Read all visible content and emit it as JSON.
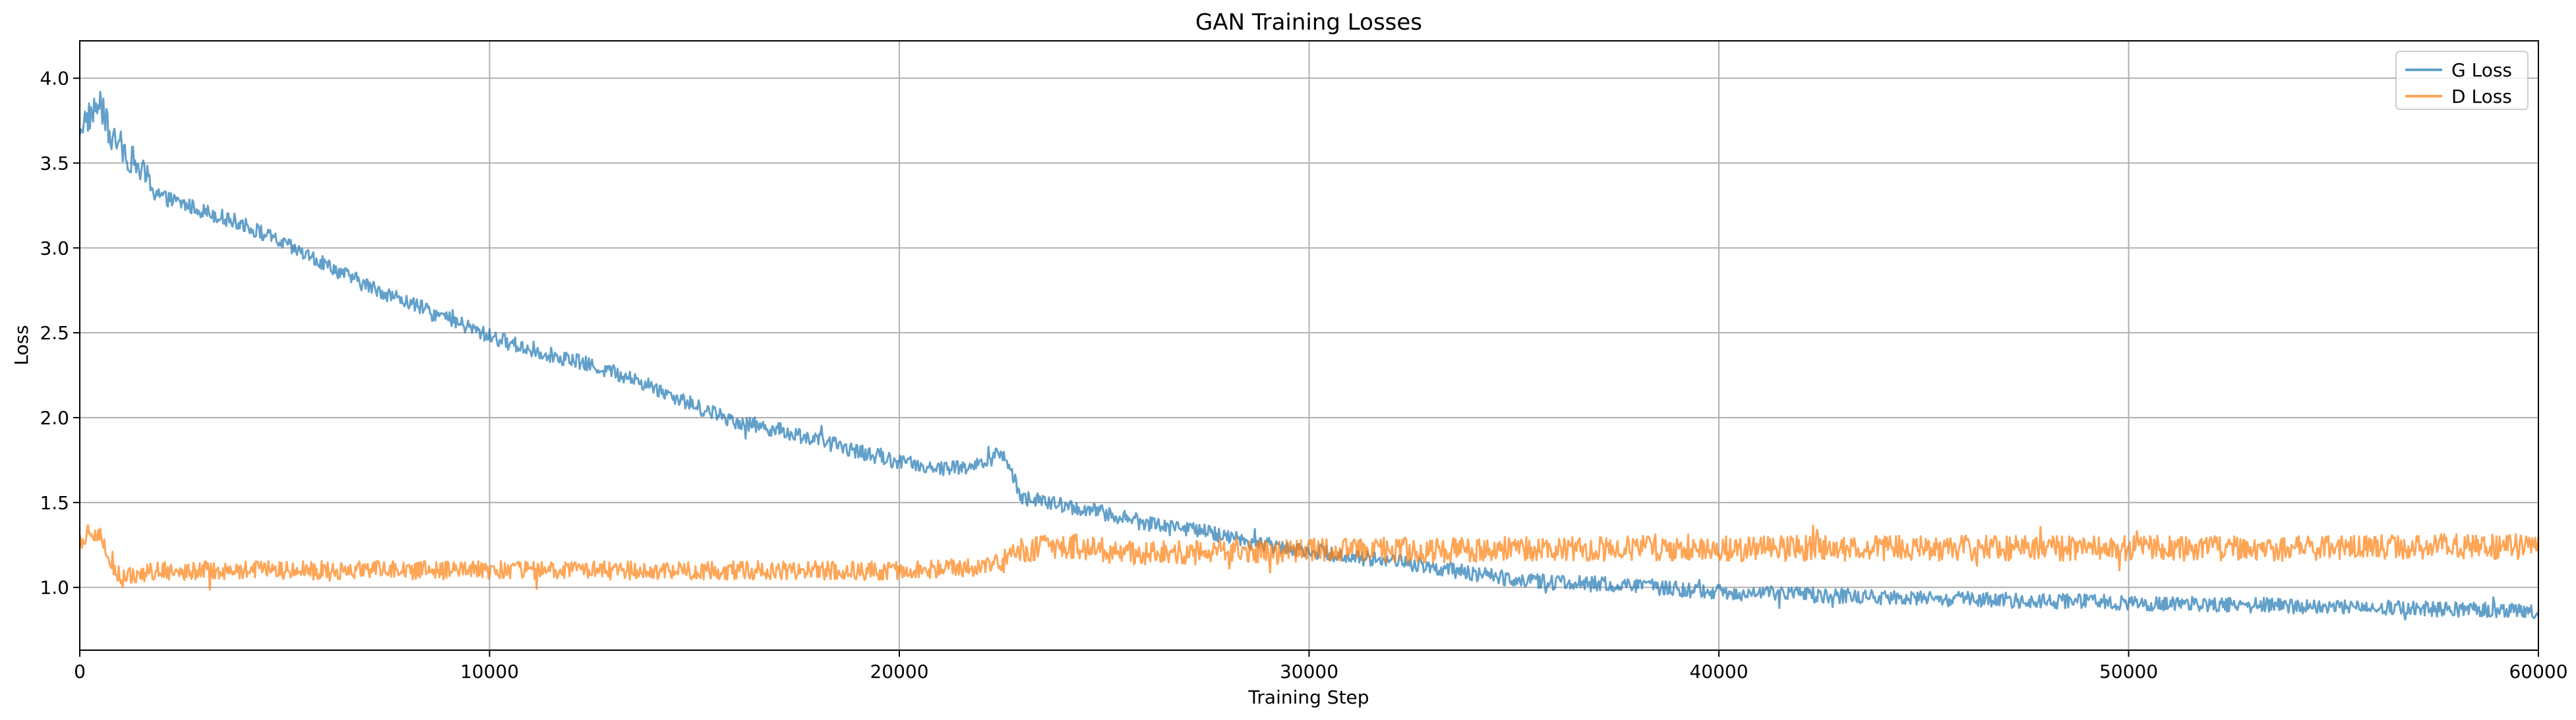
{
  "chart_data": {
    "type": "line",
    "title": "GAN Training Losses",
    "xlabel": "Training Step",
    "ylabel": "Loss",
    "xlim": [
      0,
      60000
    ],
    "ylim": [
      0.63,
      4.22
    ],
    "xticks": [
      0,
      10000,
      20000,
      30000,
      40000,
      50000,
      60000
    ],
    "yticks": [
      1.0,
      1.5,
      2.0,
      2.5,
      3.0,
      3.5,
      4.0
    ],
    "grid": true,
    "legend_position": "top-right",
    "series": [
      {
        "name": "G Loss",
        "color": "#1f77b4",
        "opacity": 0.7,
        "x": [
          0,
          250,
          500,
          750,
          1000,
          1500,
          2000,
          3000,
          4000,
          5000,
          6000,
          7000,
          8000,
          9000,
          10000,
          11000,
          12000,
          13000,
          14000,
          15000,
          16000,
          17000,
          18000,
          19000,
          20000,
          21000,
          22000,
          22500,
          23000,
          24000,
          25000,
          26000,
          27000,
          28000,
          29000,
          30000,
          31000,
          32000,
          33000,
          34000,
          35000,
          36000,
          37000,
          38000,
          39000,
          40000,
          42000,
          44000,
          46000,
          48000,
          50000,
          52000,
          54000,
          56000,
          58000,
          60000
        ],
        "y": [
          3.72,
          3.78,
          3.85,
          3.65,
          3.6,
          3.45,
          3.3,
          3.22,
          3.14,
          3.02,
          2.9,
          2.78,
          2.68,
          2.58,
          2.48,
          2.4,
          2.34,
          2.27,
          2.18,
          2.07,
          1.98,
          1.93,
          1.87,
          1.8,
          1.74,
          1.7,
          1.72,
          1.8,
          1.53,
          1.48,
          1.44,
          1.38,
          1.35,
          1.3,
          1.25,
          1.22,
          1.18,
          1.16,
          1.12,
          1.08,
          1.05,
          1.03,
          1.02,
          1.01,
          0.99,
          0.97,
          0.96,
          0.94,
          0.93,
          0.92,
          0.91,
          0.9,
          0.89,
          0.88,
          0.87,
          0.86
        ]
      },
      {
        "name": "D Loss",
        "color": "#ff7f0e",
        "opacity": 0.7,
        "x": [
          0,
          250,
          500,
          750,
          1000,
          1500,
          2000,
          4000,
          6000,
          8000,
          10000,
          12000,
          14000,
          16000,
          18000,
          20000,
          22000,
          22500,
          23000,
          24000,
          25000,
          26000,
          27000,
          28000,
          29000,
          30000,
          32000,
          34000,
          36000,
          38000,
          40000,
          42000,
          44000,
          46000,
          48000,
          50000,
          52000,
          54000,
          56000,
          58000,
          60000
        ],
        "y": [
          1.25,
          1.35,
          1.3,
          1.15,
          1.05,
          1.08,
          1.1,
          1.1,
          1.1,
          1.1,
          1.1,
          1.1,
          1.1,
          1.1,
          1.1,
          1.1,
          1.12,
          1.15,
          1.22,
          1.25,
          1.22,
          1.2,
          1.2,
          1.22,
          1.2,
          1.22,
          1.22,
          1.22,
          1.23,
          1.23,
          1.22,
          1.23,
          1.23,
          1.23,
          1.23,
          1.23,
          1.23,
          1.23,
          1.24,
          1.24,
          1.24
        ]
      }
    ]
  }
}
